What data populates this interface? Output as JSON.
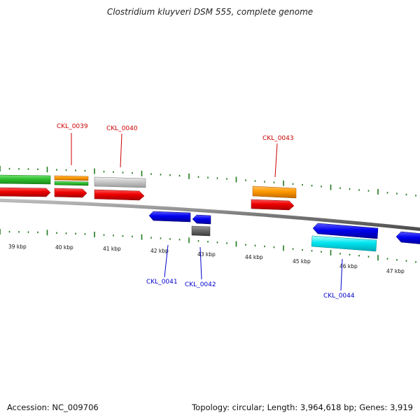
{
  "title": "Clostridium kluyveri DSM 555, complete genome",
  "footer": {
    "accession": "Accession: NC_009706",
    "summary": "Topology: circular; Length: 3,964,618 bp; Genes: 3,919"
  },
  "colors": {
    "backbone": "#8a8a8a",
    "tick": "#1f7a1f",
    "forward_label": "#cc0000",
    "reverse_label": "#0000cc"
  },
  "kbp_labels": [
    "39 kbp",
    "40 kbp",
    "41 kbp",
    "42 kbp",
    "43 kbp",
    "44 kbp",
    "45 kbp",
    "46 kbp",
    "47 kbp"
  ],
  "gene_labels": {
    "forward": [
      "CKL_0039",
      "CKL_0040",
      "CKL_0043"
    ],
    "reverse": [
      "CKL_0041",
      "CKL_0042",
      "CKL_0044"
    ]
  }
}
